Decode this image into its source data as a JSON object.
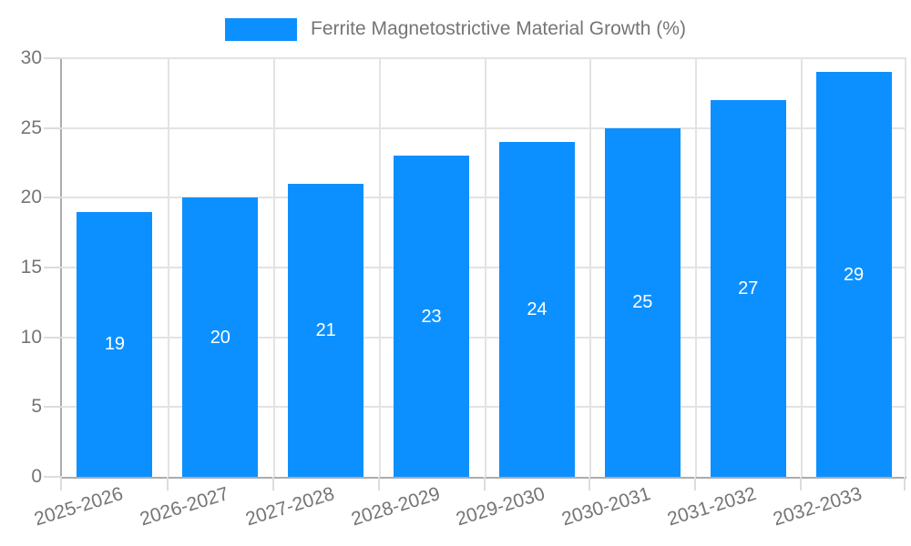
{
  "chart_data": {
    "type": "bar",
    "title": "",
    "legend": "Ferrite Magnetostrictive Material Growth (%)",
    "legend_position": "top-center",
    "categories": [
      "2025-2026",
      "2026-2027",
      "2027-2028",
      "2028-2029",
      "2029-2030",
      "2030-2031",
      "2031-2032",
      "2032-2033"
    ],
    "values": [
      19,
      20,
      21,
      23,
      24,
      25,
      27,
      29
    ],
    "xlabel": "",
    "ylabel": "",
    "ylim": [
      0,
      30
    ],
    "yticks": [
      0,
      5,
      10,
      15,
      20,
      25,
      30
    ],
    "grid": true,
    "value_labels": "inside-center",
    "x_label_rotation_deg": -17
  },
  "colors": {
    "bar": "#0D90FF",
    "value_label": "#FFFFFF",
    "axis_text": "#757575",
    "legend_text": "#757575",
    "gridline": "#E3E3E3",
    "tick": "#DCDCDC",
    "axis_line": "#ACACAC",
    "background": "#FFFFFF"
  }
}
